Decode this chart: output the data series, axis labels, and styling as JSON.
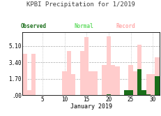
{
  "title": "KPBI Precipitation for 1/2019",
  "xlabel": "January 2019",
  "ylim": [
    0,
    6.5
  ],
  "yticks": [
    0.0,
    1.7,
    3.4,
    5.1
  ],
  "yticklabels": [
    ".00",
    "1.70",
    "3.40",
    "5.10"
  ],
  "xticks": [
    5,
    10,
    15,
    20,
    25,
    30
  ],
  "days": [
    1,
    2,
    3,
    4,
    5,
    6,
    7,
    8,
    9,
    10,
    11,
    12,
    13,
    14,
    15,
    16,
    17,
    18,
    19,
    20,
    21,
    22,
    23,
    24,
    25,
    26,
    27,
    28,
    29,
    30,
    31
  ],
  "record": [
    4.3,
    0.5,
    4.3,
    0.0,
    0.0,
    0.0,
    0.0,
    0.0,
    0.0,
    2.5,
    4.6,
    2.2,
    0.0,
    4.6,
    6.0,
    2.5,
    2.5,
    0.0,
    3.1,
    6.1,
    3.1,
    3.0,
    0.0,
    0.0,
    3.1,
    2.5,
    5.2,
    0.0,
    2.2,
    2.2,
    3.9
  ],
  "observed": [
    0.0,
    0.0,
    0.0,
    0.0,
    0.0,
    0.0,
    0.0,
    0.0,
    0.0,
    0.0,
    0.0,
    0.0,
    0.0,
    0.0,
    0.0,
    0.0,
    0.0,
    0.0,
    0.0,
    0.05,
    0.0,
    0.0,
    0.0,
    0.55,
    0.55,
    0.0,
    2.7,
    0.5,
    0.07,
    0.0,
    1.95
  ],
  "record_color": "#ffcccc",
  "observed_color": "#1a6e1a",
  "background_color": "#ffffff",
  "title_color": "#404040",
  "observed_label_color": "#1a6e1a",
  "normal_label_color": "#66dd66",
  "record_label_color": "#ffaaaa",
  "grid_h_color": "#aaaaaa",
  "grid_v_color": "#aaaaaa"
}
